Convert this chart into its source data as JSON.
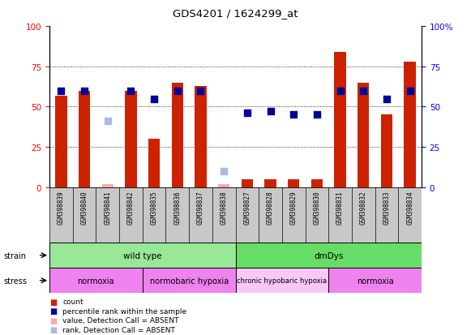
{
  "title": "GDS4201 / 1624299_at",
  "samples": [
    "GSM398839",
    "GSM398840",
    "GSM398841",
    "GSM398842",
    "GSM398835",
    "GSM398836",
    "GSM398837",
    "GSM398838",
    "GSM398827",
    "GSM398828",
    "GSM398829",
    "GSM398830",
    "GSM398831",
    "GSM398832",
    "GSM398833",
    "GSM398834"
  ],
  "count_values": [
    57,
    60,
    2,
    60,
    30,
    65,
    63,
    2,
    5,
    5,
    5,
    5,
    84,
    65,
    45,
    78
  ],
  "count_absent": [
    false,
    false,
    true,
    false,
    false,
    false,
    false,
    true,
    false,
    false,
    false,
    false,
    false,
    false,
    false,
    false
  ],
  "percentile_values": [
    60,
    60,
    41,
    60,
    55,
    60,
    60,
    10,
    46,
    47,
    45,
    45,
    60,
    60,
    55,
    60
  ],
  "percentile_absent": [
    false,
    false,
    true,
    false,
    false,
    false,
    false,
    true,
    false,
    false,
    false,
    false,
    false,
    false,
    false,
    false
  ],
  "strain_groups": [
    {
      "label": "wild type",
      "start": 0,
      "end": 8,
      "color": "#98E898"
    },
    {
      "label": "dmDys",
      "start": 8,
      "end": 16,
      "color": "#66DD66"
    }
  ],
  "stress_groups": [
    {
      "label": "normoxia",
      "start": 0,
      "end": 4,
      "color": "#EE82EE"
    },
    {
      "label": "normobaric hypoxia",
      "start": 4,
      "end": 8,
      "color": "#EE82EE"
    },
    {
      "label": "chronic hypobaric hypoxia",
      "start": 8,
      "end": 12,
      "color": "#F8C8F8"
    },
    {
      "label": "normoxia",
      "start": 12,
      "end": 16,
      "color": "#EE82EE"
    }
  ],
  "bar_color_present": "#CC2200",
  "bar_color_absent": "#FFAAAA",
  "dot_color_present": "#000099",
  "dot_color_absent": "#AABBDD",
  "sample_bg": "#C8C8C8",
  "plot_bg": "#FFFFFF"
}
